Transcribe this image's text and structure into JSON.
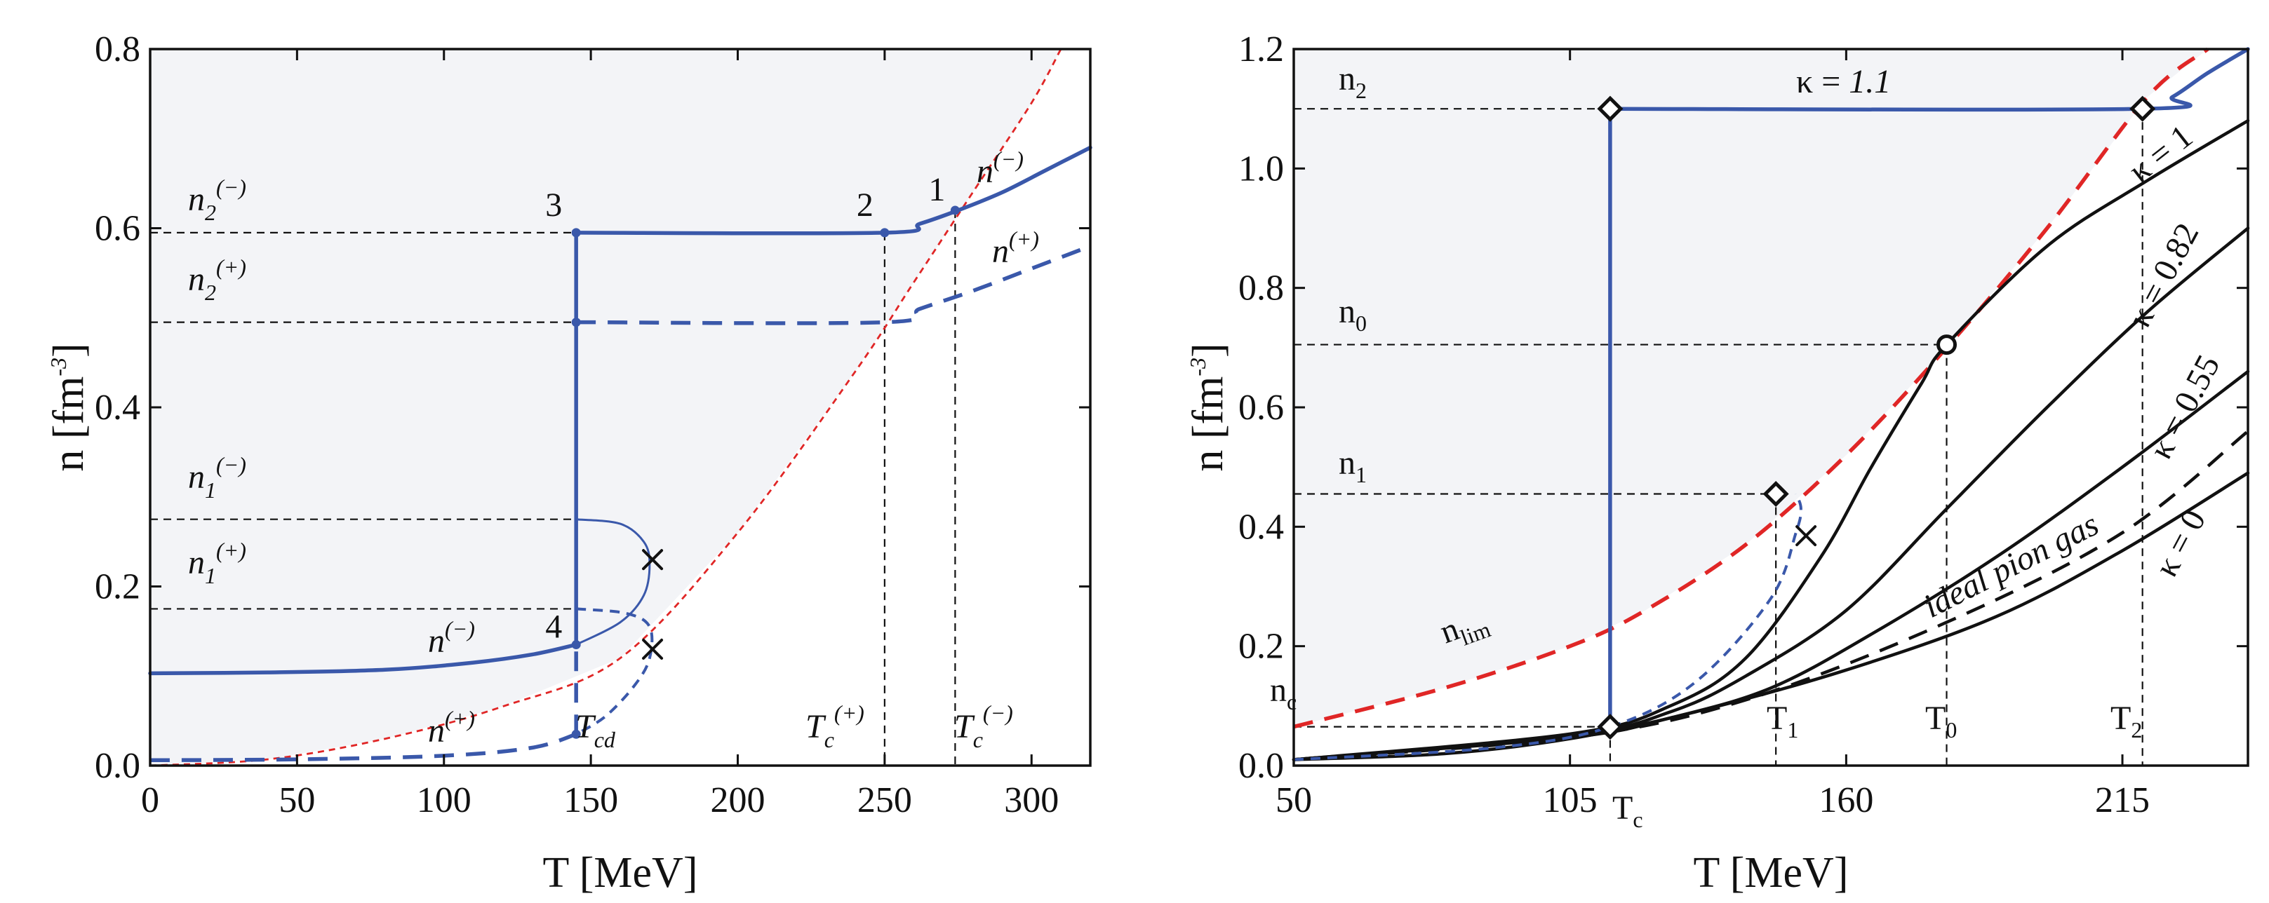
{
  "chart_data": [
    {
      "type": "line",
      "panel": "left",
      "xlabel": "T [MeV]",
      "ylabel": "n [fm^-3]",
      "ylabel_base": "n [fm",
      "ylabel_exp": "-3",
      "ylabel_close": "]",
      "xlim": [
        0,
        320
      ],
      "ylim": [
        0,
        0.8
      ],
      "x_ticks": [
        0,
        50,
        100,
        150,
        200,
        250,
        300
      ],
      "y_ticks": [
        0.0,
        0.2,
        0.4,
        0.6,
        0.8
      ],
      "x_tick_labels": [
        "0",
        "50",
        "100",
        "150",
        "200",
        "250",
        "300"
      ],
      "y_tick_labels": [
        "0.0",
        "0.2",
        "0.4",
        "0.6",
        "0.8"
      ],
      "series": [
        {
          "name": "n_lim",
          "style": "red-fine",
          "x": [
            0,
            40,
            80,
            120,
            160,
            200,
            240,
            260,
            280,
            300,
            310
          ],
          "y": [
            0.0,
            0.007,
            0.03,
            0.066,
            0.12,
            0.26,
            0.44,
            0.54,
            0.64,
            0.74,
            0.8
          ]
        },
        {
          "name": "n(-) left branch",
          "style": "blue-solid",
          "x": [
            0,
            40,
            80,
            110,
            130,
            145
          ],
          "y": [
            0.103,
            0.104,
            0.107,
            0.115,
            0.124,
            0.135
          ]
        },
        {
          "name": "n(-) right branch",
          "style": "blue-solid",
          "x": [
            145,
            250,
            262,
            275,
            290,
            305,
            320
          ],
          "y": [
            0.595,
            0.595,
            0.605,
            0.62,
            0.64,
            0.665,
            0.69
          ]
        },
        {
          "name": "n(+) left branch",
          "style": "blue-dashed",
          "x": [
            0,
            50,
            100,
            130,
            145
          ],
          "y": [
            0.006,
            0.007,
            0.011,
            0.02,
            0.035
          ]
        },
        {
          "name": "n(+) right branch",
          "style": "blue-dashed",
          "x": [
            145,
            250,
            262,
            280,
            300,
            320
          ],
          "y": [
            0.495,
            0.495,
            0.51,
            0.53,
            0.555,
            0.58
          ]
        },
        {
          "name": "n(-) metastable",
          "style": "blue-thin",
          "x": [
            145,
            160,
            168,
            170,
            168,
            160,
            145
          ],
          "y": [
            0.275,
            0.27,
            0.25,
            0.225,
            0.19,
            0.16,
            0.135
          ]
        },
        {
          "name": "n(+) metastable",
          "style": "blue-dashed-thin",
          "x": [
            145,
            162,
            170,
            170,
            165,
            155,
            145
          ],
          "y": [
            0.175,
            0.17,
            0.155,
            0.12,
            0.09,
            0.055,
            0.035
          ]
        }
      ],
      "transition_T": 145,
      "Tc_plus": 250,
      "Tc_minus": 274,
      "levels": {
        "n2_minus": 0.595,
        "n2_plus": 0.495,
        "n1_minus": 0.275,
        "n1_plus": 0.175
      },
      "points": [
        {
          "label": "1",
          "x": 274,
          "y": 0.62
        },
        {
          "label": "2",
          "x": 250,
          "y": 0.595
        },
        {
          "label": "3",
          "x": 145,
          "y": 0.595
        },
        {
          "label": "4",
          "x": 145,
          "y": 0.135
        },
        {
          "label": "",
          "x": 145,
          "y": 0.495
        },
        {
          "label": "",
          "x": 145,
          "y": 0.035
        }
      ],
      "crosses": [
        {
          "x": 171,
          "y": 0.23
        },
        {
          "x": 171,
          "y": 0.13
        }
      ],
      "labels": {
        "n2m_base": "n",
        "n2m_sub": "2",
        "n2m_sup": "(−)",
        "n2p_base": "n",
        "n2p_sub": "2",
        "n2p_sup": "(+)",
        "n1m_base": "n",
        "n1m_sub": "1",
        "n1m_sup": "(−)",
        "n1p_base": "n",
        "n1p_sub": "1",
        "n1p_sup": "(+)",
        "curve_nm_left_base": "n",
        "curve_nm_left_sup": "(−)",
        "curve_np_left_base": "n",
        "curve_np_left_sup": "(+)",
        "curve_nm_right_base": "n",
        "curve_nm_right_sup": "(−)",
        "curve_np_right_base": "n",
        "curve_np_right_sup": "(+)",
        "tcd_base": "T",
        "tcd_sub": "cd",
        "tcp_base": "T",
        "tcp_sub": "c",
        "tcp_sup": "(+)",
        "tcm_base": "T",
        "tcm_sub": "c",
        "tcm_sup": "(−)"
      }
    },
    {
      "type": "line",
      "panel": "right",
      "xlabel": "T [MeV]",
      "ylabel": "n [fm^-3]",
      "ylabel_base": "n [fm",
      "ylabel_exp": "-3",
      "ylabel_close": "]",
      "xlim": [
        50,
        240
      ],
      "ylim": [
        0,
        1.2
      ],
      "x_ticks": [
        50,
        105,
        160,
        215
      ],
      "y_ticks": [
        0.0,
        0.2,
        0.4,
        0.6,
        0.8,
        1.0,
        1.2
      ],
      "x_tick_labels": [
        "50",
        "105",
        "160",
        "215"
      ],
      "y_tick_labels": [
        "0.0",
        "0.2",
        "0.4",
        "0.6",
        "0.8",
        "1.0",
        "1.2"
      ],
      "series": [
        {
          "name": "n_lim",
          "style": "red-dashed",
          "x": [
            50,
            80,
            105,
            120,
            140,
            160,
            180,
            200,
            220,
            232
          ],
          "y": [
            0.065,
            0.13,
            0.2,
            0.26,
            0.37,
            0.52,
            0.7,
            0.9,
            1.12,
            1.2
          ]
        },
        {
          "name": "κ = 0",
          "style": "black",
          "x": [
            50,
            80,
            105,
            130,
            160,
            190,
            215,
            240
          ],
          "y": [
            0.01,
            0.02,
            0.045,
            0.09,
            0.16,
            0.25,
            0.36,
            0.49
          ]
        },
        {
          "name": "κ = 0.55",
          "style": "black",
          "x": [
            50,
            105,
            125,
            145,
            165,
            190,
            215,
            240
          ],
          "y": [
            0.01,
            0.047,
            0.08,
            0.13,
            0.22,
            0.35,
            0.5,
            0.66
          ]
        },
        {
          "name": "κ = 0.82",
          "style": "black",
          "x": [
            50,
            105,
            125,
            140,
            160,
            180,
            200,
            220,
            240
          ],
          "y": [
            0.01,
            0.05,
            0.09,
            0.15,
            0.26,
            0.43,
            0.6,
            0.76,
            0.9
          ]
        },
        {
          "name": "κ = 1",
          "style": "black",
          "x": [
            50,
            105,
            125,
            140,
            155,
            165,
            175,
            180,
            200,
            220,
            240
          ],
          "y": [
            0.01,
            0.053,
            0.1,
            0.18,
            0.35,
            0.5,
            0.64,
            0.705,
            0.87,
            0.98,
            1.08
          ]
        },
        {
          "name": "ideal pion gas",
          "style": "black-dashed",
          "x": [
            50,
            105,
            140,
            180,
            215,
            240
          ],
          "y": [
            0.01,
            0.047,
            0.11,
            0.24,
            0.39,
            0.56
          ]
        },
        {
          "name": "κ = 1.1 metastable",
          "style": "blue-dashed-thin",
          "x": [
            50,
            90,
            113,
            130,
            145,
            150,
            151,
            150
          ],
          "y": [
            0.01,
            0.03,
            0.065,
            0.14,
            0.28,
            0.39,
            0.43,
            0.455
          ]
        },
        {
          "name": "κ = 1.1 jump",
          "style": "blue-solid",
          "x": [
            113,
            113
          ],
          "y": [
            0.065,
            1.1
          ]
        },
        {
          "name": "κ = 1.1 plateau",
          "style": "blue-solid",
          "x": [
            113,
            219,
            225,
            232,
            240
          ],
          "y": [
            1.1,
            1.1,
            1.12,
            1.16,
            1.2
          ]
        }
      ],
      "levels": {
        "n2": 1.1,
        "n0": 0.705,
        "n1": 0.455,
        "nc": 0.065
      },
      "temps": {
        "Tc": 113,
        "T1": 146,
        "T0": 180,
        "T2": 219
      },
      "diamonds": [
        {
          "x": 113,
          "y": 1.1
        },
        {
          "x": 219,
          "y": 1.1
        },
        {
          "x": 146,
          "y": 0.455
        },
        {
          "x": 113,
          "y": 0.065
        }
      ],
      "circles": [
        {
          "x": 180,
          "y": 0.705
        }
      ],
      "crosses": [
        {
          "x": 152,
          "y": 0.385
        }
      ],
      "labels": {
        "n2_base": "n",
        "n2_sub": "2",
        "n0_base": "n",
        "n0_sub": "0",
        "n1_base": "n",
        "n1_sub": "1",
        "nc_base": "n",
        "nc_sub": "c",
        "nlim_base": "n",
        "nlim_sub": "lim",
        "tc_base": "T",
        "tc_sub": "c",
        "t1_base": "T",
        "t1_sub": "1",
        "t0_base": "T",
        "t0_sub": "0",
        "t2_base": "T",
        "t2_sub": "2",
        "k11_prefix": "κ = ",
        "k11_value": "1.1",
        "k1": "κ = 1",
        "k082": "κ = 0.82",
        "k055": "κ = 0.55",
        "k0": "κ = 0",
        "ideal": "ideal pion gas"
      }
    }
  ]
}
